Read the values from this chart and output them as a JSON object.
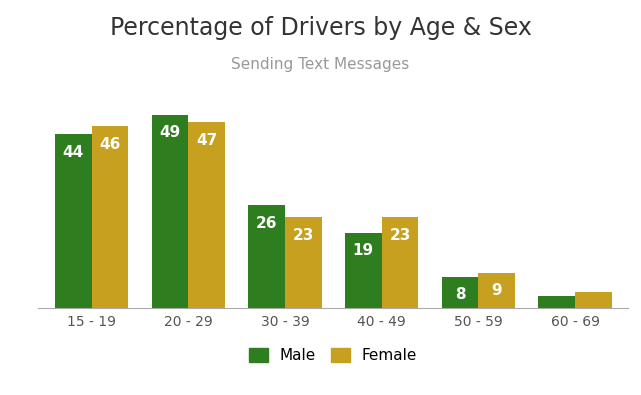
{
  "title": "Percentage of Drivers by Age & Sex",
  "subtitle": "Sending Text Messages",
  "categories": [
    "15 - 19",
    "20 - 29",
    "30 - 39",
    "40 - 49",
    "50 - 59",
    "60 - 69"
  ],
  "male_values": [
    44,
    49,
    26,
    19,
    8,
    3
  ],
  "female_values": [
    46,
    47,
    23,
    23,
    9,
    4
  ],
  "male_color": "#2e7d1e",
  "female_color": "#c8a020",
  "background_color": "#ffffff",
  "bar_width": 0.38,
  "title_fontsize": 17,
  "subtitle_fontsize": 11,
  "label_fontsize": 11,
  "tick_fontsize": 10,
  "legend_fontsize": 11,
  "ylim": [
    0,
    58
  ],
  "value_label_color": "#ffffff"
}
